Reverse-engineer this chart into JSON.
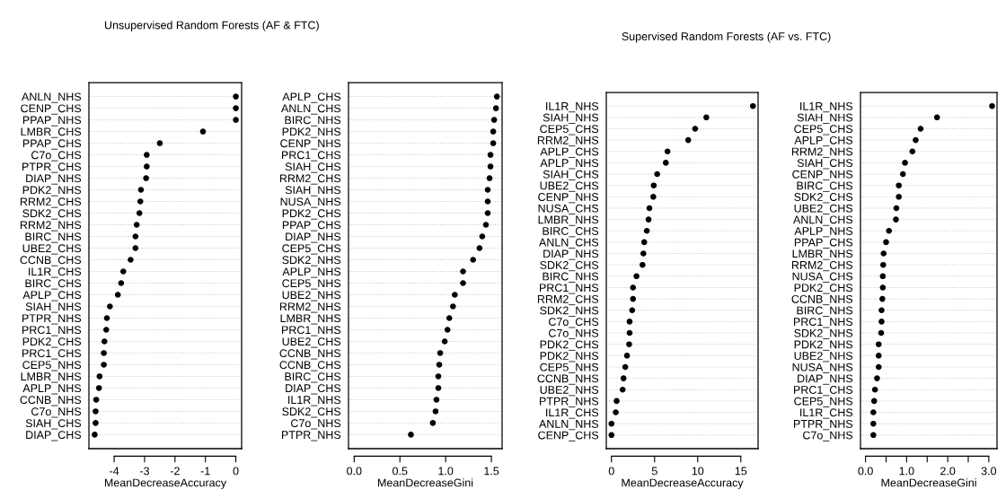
{
  "chart_data": [
    {
      "type": "scatter",
      "orientation": "horizontal",
      "title": "Unsupervised Random Forests (AF & FTC)",
      "xlabel": "MeanDecreaseAccuracy",
      "marker": "circle",
      "grid": "y",
      "color": "#000000",
      "categories": [
        "ANLN_NHS",
        "CENP_CHS",
        "PPAP_NHS",
        "LMBR_CHS",
        "PPAP_CHS",
        "C7o_CHS",
        "PTPR_CHS",
        "DIAP_NHS",
        "PDK2_NHS",
        "RRM2_CHS",
        "SDK2_CHS",
        "RRM2_NHS",
        "BIRC_NHS",
        "UBE2_CHS",
        "CCNB_CHS",
        "IL1R_CHS",
        "BIRC_CHS",
        "APLP_CHS",
        "SIAH_NHS",
        "PTPR_NHS",
        "PRC1_NHS",
        "PDK2_CHS",
        "PRC1_CHS",
        "CEP5_NHS",
        "LMBR_NHS",
        "APLP_NHS",
        "CCNB_NHS",
        "C7o_NHS",
        "SIAH_CHS",
        "DIAP_CHS"
      ],
      "values": [
        0,
        0,
        0,
        -1.08,
        -2.5,
        -2.93,
        -2.93,
        -2.95,
        -3.12,
        -3.14,
        -3.17,
        -3.26,
        -3.3,
        -3.3,
        -3.46,
        -3.7,
        -3.77,
        -3.88,
        -4.14,
        -4.24,
        -4.26,
        -4.32,
        -4.34,
        -4.34,
        -4.48,
        -4.5,
        -4.59,
        -4.61,
        -4.61,
        -4.64
      ],
      "xlim": [
        -4.83,
        0.19
      ],
      "xticks": [
        -4,
        -3,
        -2,
        -1,
        0
      ]
    },
    {
      "type": "scatter",
      "orientation": "horizontal",
      "xlabel": "MeanDecreaseGini",
      "marker": "circle",
      "grid": "y",
      "color": "#000000",
      "categories": [
        "APLP_CHS",
        "ANLN_CHS",
        "BIRC_NHS",
        "PDK2_NHS",
        "CENP_NHS",
        "PRC1_CHS",
        "SIAH_CHS",
        "RRM2_CHS",
        "SIAH_NHS",
        "NUSA_NHS",
        "PDK2_CHS",
        "PPAP_CHS",
        "DIAP_NHS",
        "CEP5_CHS",
        "SDK2_NHS",
        "APLP_NHS",
        "CEP5_NHS",
        "UBE2_NHS",
        "RRM2_NHS",
        "LMBR_NHS",
        "PRC1_NHS",
        "UBE2_CHS",
        "CCNB_NHS",
        "CCNB_CHS",
        "BIRC_CHS",
        "DIAP_CHS",
        "IL1R_NHS",
        "SDK2_CHS",
        "C7o_NHS",
        "PTPR_NHS"
      ],
      "values": [
        1.56,
        1.55,
        1.53,
        1.52,
        1.52,
        1.49,
        1.49,
        1.48,
        1.46,
        1.46,
        1.46,
        1.44,
        1.4,
        1.37,
        1.3,
        1.19,
        1.19,
        1.1,
        1.08,
        1.04,
        1.02,
        0.99,
        0.94,
        0.93,
        0.92,
        0.92,
        0.9,
        0.89,
        0.86,
        0.62
      ],
      "xlim": [
        -0.062,
        1.617
      ],
      "xticks": [
        {
          "value": 0,
          "label": "0.0"
        },
        {
          "value": 0.5,
          "label": "0.5"
        },
        {
          "value": 1,
          "label": "1.0"
        },
        {
          "value": 1.5,
          "label": "1.5"
        }
      ]
    },
    {
      "type": "scatter",
      "orientation": "horizontal",
      "title": "Supervised Random Forests (AF vs. FTC)",
      "xlabel": "MeanDecreaseAccuracy",
      "marker": "circle",
      "grid": "y",
      "color": "#000000",
      "categories": [
        "IL1R_NHS",
        "SIAH_NHS",
        "CEP5_CHS",
        "RRM2_NHS",
        "APLP_CHS",
        "APLP_NHS",
        "SIAH_CHS",
        "UBE2_CHS",
        "CENP_NHS",
        "NUSA_CHS",
        "LMBR_NHS",
        "BIRC_CHS",
        "ANLN_CHS",
        "DIAP_NHS",
        "SDK2_CHS",
        "BIRC_NHS",
        "PRC1_NHS",
        "RRM2_CHS",
        "SDK2_NHS",
        "C7o_CHS",
        "C7o_NHS",
        "PDK2_CHS",
        "PDK2_NHS",
        "CEP5_NHS",
        "CCNB_NHS",
        "UBE2_NHS",
        "PTPR_NHS",
        "IL1R_CHS",
        "ANLN_NHS",
        "CENP_CHS"
      ],
      "values": [
        16.4,
        11.0,
        9.7,
        8.9,
        6.5,
        6.3,
        5.3,
        4.9,
        4.85,
        4.4,
        4.3,
        4.1,
        3.8,
        3.7,
        3.6,
        2.9,
        2.5,
        2.5,
        2.4,
        2.1,
        2.1,
        2.05,
        1.8,
        1.6,
        1.4,
        1.3,
        0.6,
        0.5,
        0,
        0
      ],
      "xlim": [
        -0.6,
        17.0
      ],
      "xticks": [
        0,
        5,
        10,
        15
      ]
    },
    {
      "type": "scatter",
      "orientation": "horizontal",
      "xlabel": "MeanDecreaseGini",
      "marker": "circle",
      "grid": "y",
      "color": "#000000",
      "categories": [
        "IL1R_NHS",
        "SIAH_NHS",
        "CEP5_CHS",
        "APLP_CHS",
        "RRM2_NHS",
        "SIAH_CHS",
        "CENP_NHS",
        "BIRC_CHS",
        "SDK2_CHS",
        "UBE2_CHS",
        "ANLN_CHS",
        "APLP_NHS",
        "PPAP_CHS",
        "LMBR_NHS",
        "RRM2_CHS",
        "NUSA_CHS",
        "PDK2_CHS",
        "CCNB_NHS",
        "BIRC_NHS",
        "PRC1_NHS",
        "SDK2_NHS",
        "PDK2_NHS",
        "UBE2_NHS",
        "NUSA_NHS",
        "DIAP_NHS",
        "PRC1_CHS",
        "CEP5_NHS",
        "IL1R_CHS",
        "PTPR_NHS",
        "C7o_NHS"
      ],
      "values": [
        3.08,
        1.74,
        1.34,
        1.22,
        1.14,
        0.96,
        0.91,
        0.81,
        0.81,
        0.75,
        0.74,
        0.57,
        0.5,
        0.44,
        0.43,
        0.42,
        0.42,
        0.41,
        0.39,
        0.39,
        0.38,
        0.32,
        0.32,
        0.32,
        0.28,
        0.23,
        0.21,
        0.19,
        0.19,
        0.19
      ],
      "xlim": [
        -0.123,
        3.2
      ],
      "xticks": [
        {
          "value": 0,
          "label": "0.0"
        },
        {
          "value": 0.5,
          "label": null
        },
        {
          "value": 1,
          "label": "1.0"
        },
        {
          "value": 1.5,
          "label": null
        },
        {
          "value": 2,
          "label": "2.0"
        },
        {
          "value": 2.5,
          "label": null
        },
        {
          "value": 3,
          "label": "3.0"
        }
      ]
    }
  ]
}
